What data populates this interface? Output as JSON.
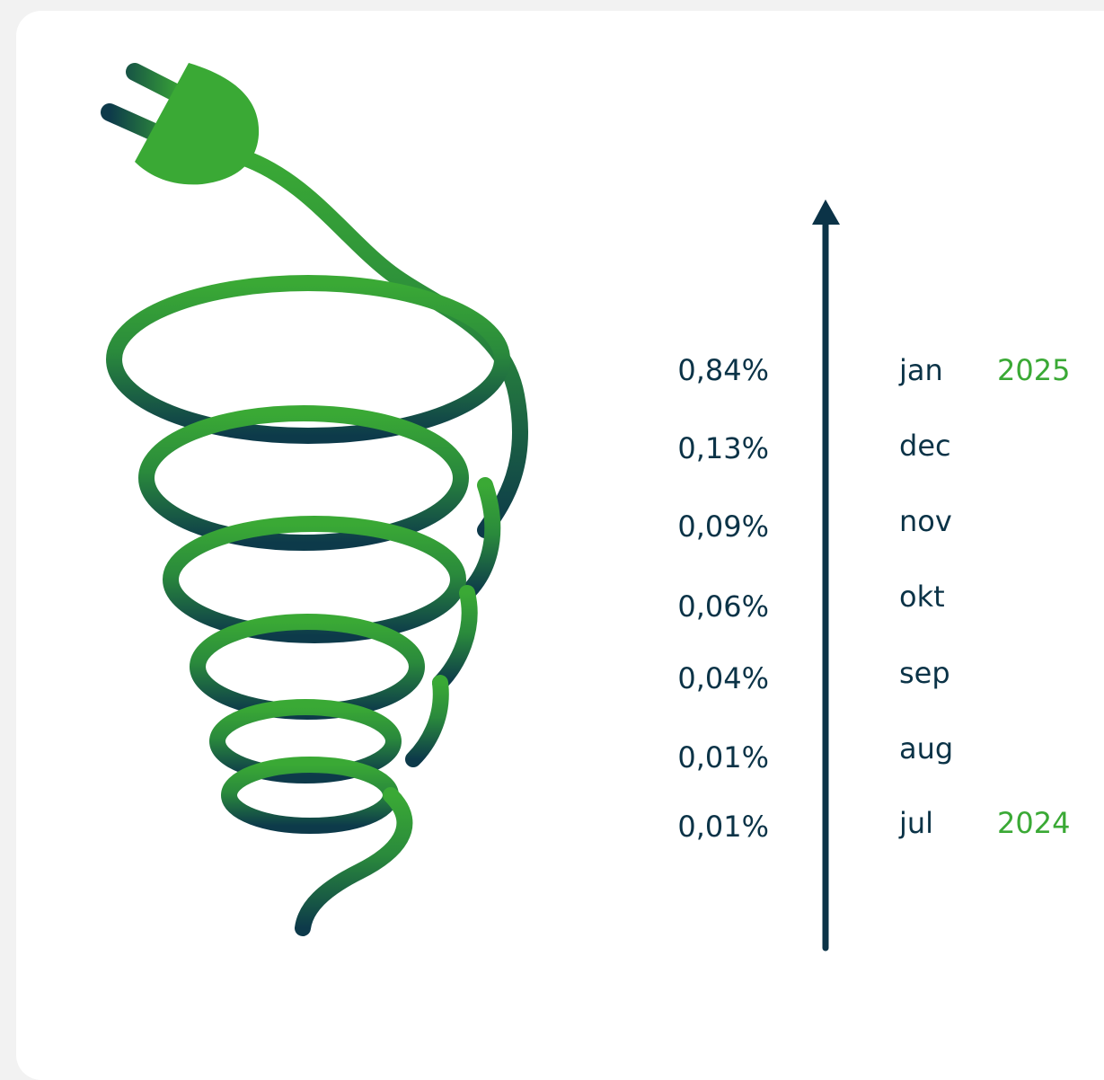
{
  "rows": [
    {
      "value": "0,84%",
      "month": "jan",
      "year": "2025"
    },
    {
      "value": "0,13%",
      "month": "dec"
    },
    {
      "value": "0,09%",
      "month": "nov"
    },
    {
      "value": "0,06%",
      "month": "okt"
    },
    {
      "value": "0,04%",
      "month": "sep"
    },
    {
      "value": "0,01%",
      "month": "aug"
    },
    {
      "value": "0,01%",
      "month": "jul",
      "year": "2024"
    }
  ]
}
